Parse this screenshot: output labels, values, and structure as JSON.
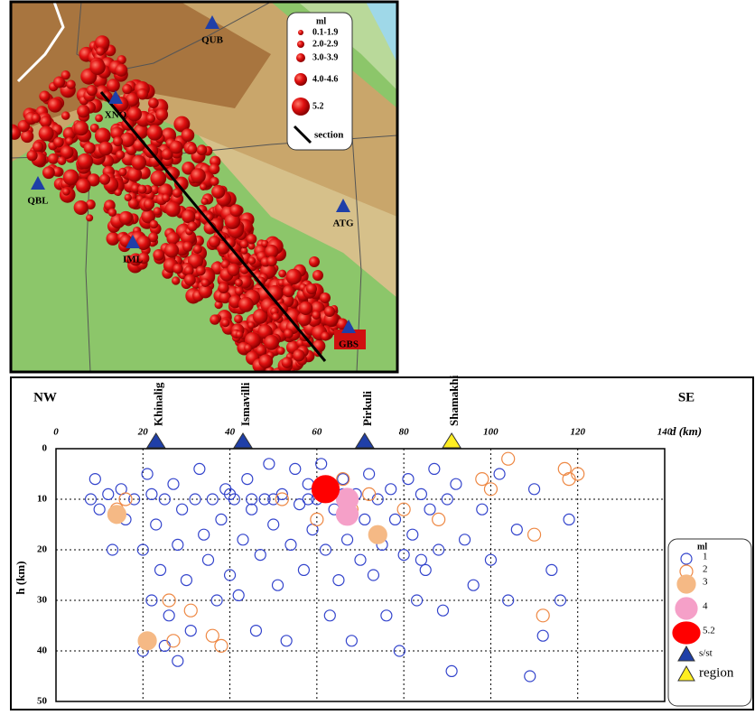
{
  "map": {
    "stations": [
      "QUB",
      "XNQ",
      "QBL",
      "ATG",
      "IML",
      "GBS"
    ],
    "legend": {
      "title": "ml",
      "items": [
        "0.1-1.9",
        "2.0-2.9",
        "3.0-3.9",
        "4.0-4.6",
        "5.2"
      ],
      "section": "section"
    }
  },
  "chart_data": {
    "type": "scatter",
    "left_label": "NW",
    "right_label": "SE",
    "x_label": "d (km)",
    "y_label": "h (km)",
    "legend_title": "ml",
    "xlim": [
      0,
      140
    ],
    "xticks": [
      0,
      20,
      40,
      60,
      80,
      100,
      120,
      140
    ],
    "ylim": [
      0,
      50
    ],
    "yticks": [
      0,
      10,
      20,
      30,
      40,
      50
    ],
    "y_inverted": true,
    "grid": true,
    "series": [
      {
        "name": "1",
        "color": "#3344cc",
        "filled": false,
        "x": [
          8,
          9,
          10,
          12,
          13,
          15,
          16,
          18,
          20,
          20,
          21,
          22,
          22,
          23,
          24,
          25,
          25,
          26,
          27,
          28,
          28,
          29,
          30,
          31,
          32,
          33,
          34,
          35,
          36,
          37,
          38,
          39,
          40,
          41,
          42,
          43,
          44,
          45,
          46,
          47,
          48,
          49,
          50,
          51,
          52,
          53,
          54,
          55,
          56,
          57,
          58,
          59,
          60,
          61,
          62,
          63,
          64,
          65,
          66,
          67,
          68,
          69,
          70,
          71,
          72,
          73,
          74,
          75,
          76,
          77,
          78,
          79,
          80,
          81,
          82,
          83,
          84,
          85,
          86,
          87,
          88,
          89,
          90,
          91,
          92,
          94,
          96,
          98,
          100,
          102,
          104,
          106,
          110,
          112,
          114,
          116,
          118,
          109,
          84,
          66,
          58,
          50,
          45,
          40
        ],
        "values": [
          10,
          6,
          12,
          9,
          20,
          8,
          14,
          10,
          20,
          40,
          5,
          9,
          30,
          15,
          24,
          10,
          39,
          33,
          7,
          19,
          42,
          12,
          26,
          36,
          10,
          4,
          17,
          22,
          10,
          30,
          14,
          8,
          25,
          10,
          29,
          18,
          6,
          12,
          36,
          21,
          10,
          3,
          15,
          27,
          9,
          38,
          19,
          4,
          11,
          24,
          7,
          16,
          10,
          3,
          20,
          33,
          12,
          26,
          6,
          18,
          38,
          9,
          22,
          14,
          5,
          25,
          10,
          19,
          33,
          8,
          14,
          40,
          21,
          6,
          17,
          30,
          9,
          24,
          12,
          4,
          20,
          32,
          10,
          44,
          7,
          18,
          27,
          12,
          22,
          5,
          30,
          16,
          8,
          37,
          24,
          30,
          14,
          45,
          22,
          9,
          10,
          10,
          10,
          9
        ]
      },
      {
        "name": "2",
        "color": "#ee8844",
        "filled": false,
        "x": [
          14,
          16,
          26,
          27,
          31,
          36,
          38,
          52,
          60,
          68,
          72,
          88,
          98,
          100,
          104,
          110,
          112,
          117,
          118,
          120,
          66,
          80
        ],
        "values": [
          12,
          10,
          30,
          38,
          32,
          37,
          39,
          10,
          14,
          12,
          9,
          14,
          6,
          8,
          2,
          17,
          33,
          4,
          6,
          5,
          6,
          12
        ]
      },
      {
        "name": "3",
        "color": "#f5b985",
        "filled": true,
        "x": [
          14,
          21,
          74
        ],
        "values": [
          13,
          38,
          17
        ]
      },
      {
        "name": "4",
        "color": "#f5a0c8",
        "filled": true,
        "x": [
          67,
          67
        ],
        "values": [
          10,
          13
        ]
      },
      {
        "name": "5.2",
        "color": "#ff0000",
        "filled": true,
        "x": [
          62
        ],
        "values": [
          8
        ]
      }
    ],
    "station_groups": [
      {
        "name": "s/st",
        "color": "#1f3fa8",
        "stations": [
          {
            "label": "Khinalig",
            "x": 23
          },
          {
            "label": "Ismavilli",
            "x": 43
          },
          {
            "label": "Pirkuli",
            "x": 71
          }
        ]
      },
      {
        "name": "region",
        "color": "#ffee22",
        "stations": [
          {
            "label": "Shamakhi",
            "x": 91
          }
        ]
      }
    ]
  }
}
